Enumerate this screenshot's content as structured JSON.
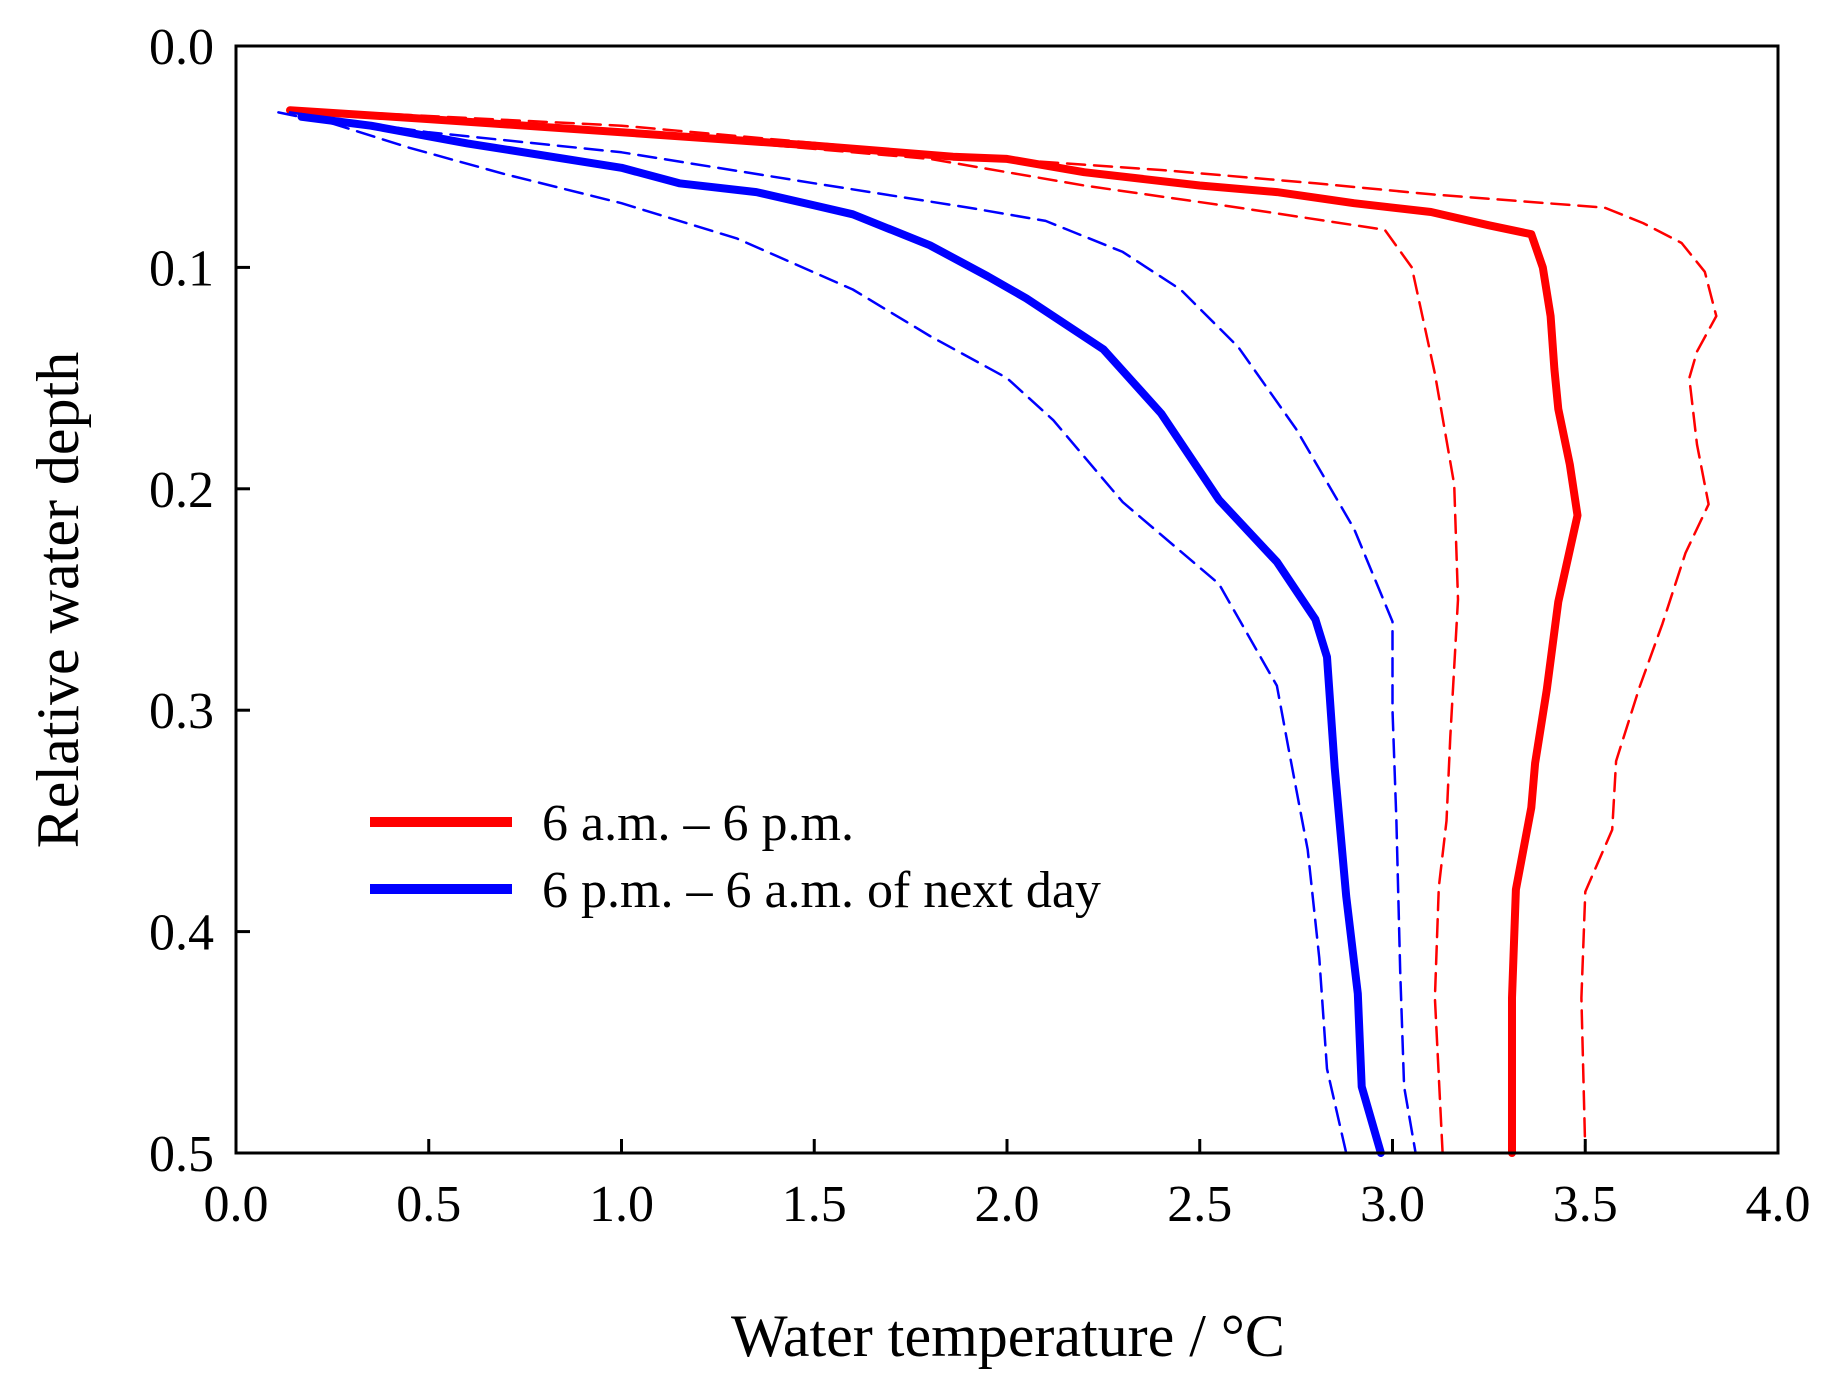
{
  "chart_data": {
    "type": "line",
    "title": "",
    "xlabel": "Water temperature / °C",
    "ylabel": "Relative water depth",
    "xlim": [
      0.0,
      4.0
    ],
    "ylim": [
      0.0,
      0.5
    ],
    "y_inverted": true,
    "x_ticks": [
      "0.0",
      "0.5",
      "1.0",
      "1.5",
      "2.0",
      "2.5",
      "3.0",
      "3.5",
      "4.0"
    ],
    "y_ticks": [
      "0.0",
      "0.1",
      "0.2",
      "0.3",
      "0.4",
      "0.5"
    ],
    "grid": false,
    "legend_position": "center-left",
    "legend": [
      {
        "label": "6 a.m. – 6 p.m.",
        "color": "#ff0000"
      },
      {
        "label": "6 p.m. – 6 a.m. of next day",
        "color": "#0000ff"
      }
    ],
    "colors": {
      "day": "#ff0000",
      "night": "#0000ff"
    },
    "series": [
      {
        "name": "6 a.m. – 6 p.m.",
        "color": "#ff0000",
        "style": "solid",
        "points": [
          [
            0.14,
            0.029
          ],
          [
            0.5,
            0.033
          ],
          [
            1.0,
            0.039
          ],
          [
            1.5,
            0.045
          ],
          [
            1.86,
            0.05
          ],
          [
            2.0,
            0.051
          ],
          [
            2.2,
            0.057
          ],
          [
            2.5,
            0.063
          ],
          [
            2.7,
            0.066
          ],
          [
            2.9,
            0.071
          ],
          [
            3.1,
            0.075
          ],
          [
            3.25,
            0.081
          ],
          [
            3.36,
            0.085
          ],
          [
            3.39,
            0.1
          ],
          [
            3.41,
            0.122
          ],
          [
            3.42,
            0.146
          ],
          [
            3.43,
            0.164
          ],
          [
            3.46,
            0.189
          ],
          [
            3.48,
            0.212
          ],
          [
            3.43,
            0.251
          ],
          [
            3.4,
            0.291
          ],
          [
            3.37,
            0.324
          ],
          [
            3.36,
            0.344
          ],
          [
            3.32,
            0.381
          ],
          [
            3.31,
            0.43
          ],
          [
            3.31,
            0.5
          ]
        ]
      },
      {
        "name": "6 a.m. – 6 p.m. (lower bound)",
        "color": "#ff0000",
        "style": "dashed",
        "points": [
          [
            0.2,
            0.03
          ],
          [
            1.0,
            0.039
          ],
          [
            1.8,
            0.051
          ],
          [
            2.2,
            0.063
          ],
          [
            2.6,
            0.073
          ],
          [
            2.98,
            0.083
          ],
          [
            3.05,
            0.1
          ],
          [
            3.11,
            0.148
          ],
          [
            3.14,
            0.178
          ],
          [
            3.16,
            0.198
          ],
          [
            3.17,
            0.25
          ],
          [
            3.15,
            0.312
          ],
          [
            3.14,
            0.35
          ],
          [
            3.12,
            0.38
          ],
          [
            3.11,
            0.43
          ],
          [
            3.13,
            0.5
          ]
        ]
      },
      {
        "name": "6 a.m. – 6 p.m. (upper bound)",
        "color": "#ff0000",
        "style": "dashed",
        "points": [
          [
            0.2,
            0.029
          ],
          [
            1.0,
            0.036
          ],
          [
            1.9,
            0.05
          ],
          [
            2.4,
            0.056
          ],
          [
            2.8,
            0.062
          ],
          [
            3.1,
            0.067
          ],
          [
            3.4,
            0.071
          ],
          [
            3.55,
            0.073
          ],
          [
            3.65,
            0.08
          ],
          [
            3.75,
            0.089
          ],
          [
            3.81,
            0.102
          ],
          [
            3.84,
            0.122
          ],
          [
            3.79,
            0.138
          ],
          [
            3.77,
            0.15
          ],
          [
            3.79,
            0.18
          ],
          [
            3.82,
            0.207
          ],
          [
            3.76,
            0.229
          ],
          [
            3.7,
            0.261
          ],
          [
            3.64,
            0.29
          ],
          [
            3.58,
            0.323
          ],
          [
            3.57,
            0.354
          ],
          [
            3.5,
            0.382
          ],
          [
            3.49,
            0.43
          ],
          [
            3.5,
            0.5
          ]
        ]
      },
      {
        "name": "6 p.m. – 6 a.m. of next day",
        "color": "#0000ff",
        "style": "solid",
        "points": [
          [
            0.17,
            0.032
          ],
          [
            0.35,
            0.036
          ],
          [
            0.6,
            0.044
          ],
          [
            1.0,
            0.055
          ],
          [
            1.15,
            0.062
          ],
          [
            1.35,
            0.066
          ],
          [
            1.5,
            0.072
          ],
          [
            1.6,
            0.076
          ],
          [
            1.8,
            0.09
          ],
          [
            1.95,
            0.104
          ],
          [
            2.05,
            0.114
          ],
          [
            2.25,
            0.137
          ],
          [
            2.4,
            0.166
          ],
          [
            2.55,
            0.205
          ],
          [
            2.7,
            0.233
          ],
          [
            2.8,
            0.259
          ],
          [
            2.83,
            0.276
          ],
          [
            2.85,
            0.326
          ],
          [
            2.88,
            0.384
          ],
          [
            2.91,
            0.428
          ],
          [
            2.92,
            0.47
          ],
          [
            2.97,
            0.5
          ]
        ]
      },
      {
        "name": "6 p.m. – 6 a.m. of next day (lower bound)",
        "color": "#0000ff",
        "style": "dashed",
        "points": [
          [
            0.11,
            0.03
          ],
          [
            0.25,
            0.035
          ],
          [
            0.45,
            0.046
          ],
          [
            0.7,
            0.058
          ],
          [
            1.0,
            0.071
          ],
          [
            1.3,
            0.087
          ],
          [
            1.6,
            0.11
          ],
          [
            1.8,
            0.131
          ],
          [
            2.0,
            0.15
          ],
          [
            2.12,
            0.169
          ],
          [
            2.3,
            0.206
          ],
          [
            2.55,
            0.243
          ],
          [
            2.7,
            0.289
          ],
          [
            2.73,
            0.317
          ],
          [
            2.78,
            0.363
          ],
          [
            2.81,
            0.412
          ],
          [
            2.83,
            0.462
          ],
          [
            2.88,
            0.5
          ]
        ]
      },
      {
        "name": "6 p.m. – 6 a.m. of next day (upper bound)",
        "color": "#0000ff",
        "style": "dashed",
        "points": [
          [
            0.14,
            0.03
          ],
          [
            0.5,
            0.039
          ],
          [
            1.0,
            0.048
          ],
          [
            1.5,
            0.062
          ],
          [
            1.9,
            0.073
          ],
          [
            2.1,
            0.079
          ],
          [
            2.3,
            0.093
          ],
          [
            2.45,
            0.11
          ],
          [
            2.6,
            0.136
          ],
          [
            2.75,
            0.173
          ],
          [
            2.9,
            0.218
          ],
          [
            3.0,
            0.26
          ],
          [
            3.0,
            0.3
          ],
          [
            3.01,
            0.35
          ],
          [
            3.02,
            0.418
          ],
          [
            3.03,
            0.47
          ],
          [
            3.06,
            0.5
          ]
        ]
      }
    ]
  }
}
